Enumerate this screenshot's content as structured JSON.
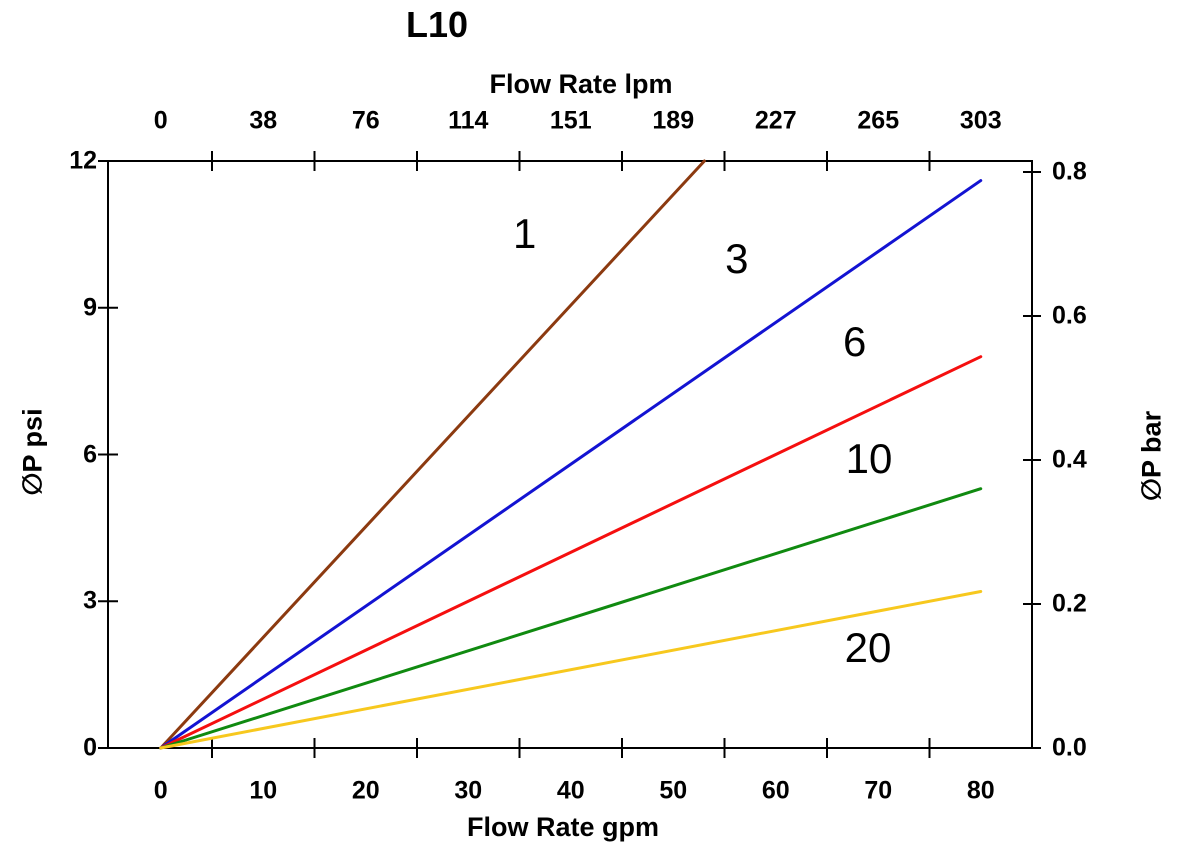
{
  "page_title": "L10",
  "chart_data": {
    "type": "line",
    "title": "L10",
    "grid": false,
    "legend": "none (inline curve labels)",
    "axes": {
      "bottom": {
        "label": "Flow Rate gpm",
        "tick_labels": [
          "0",
          "10",
          "20",
          "30",
          "40",
          "50",
          "60",
          "70",
          "80"
        ],
        "range_gpm": [
          0,
          80
        ]
      },
      "top": {
        "label": "Flow Rate lpm",
        "tick_labels": [
          "0",
          "38",
          "76",
          "114",
          "151",
          "189",
          "227",
          "265",
          "303"
        ],
        "range_lpm": [
          0,
          303
        ]
      },
      "left": {
        "label": "∅P psi",
        "tick_labels": [
          "0",
          "3",
          "6",
          "9",
          "12"
        ],
        "range_psi": [
          0,
          12
        ]
      },
      "right": {
        "label": "∅P bar",
        "tick_labels": [
          "0.0",
          "0.2",
          "0.4",
          "0.6",
          "0.8"
        ],
        "range_bar": [
          0,
          0.8
        ]
      }
    },
    "series": [
      {
        "label": "1",
        "color": "#8C3A10",
        "points": [
          {
            "gpm": 0,
            "psi": 0
          },
          {
            "gpm": 80,
            "psi": 18.1
          }
        ],
        "note": "line exits top of plot at ~53 gpm / 12 psi",
        "label_anchor": {
          "gpm": 35.5,
          "psi": 10.5
        }
      },
      {
        "label": "3",
        "color": "#1313D2",
        "points": [
          {
            "gpm": 0,
            "psi": 0
          },
          {
            "gpm": 80,
            "psi": 11.6
          }
        ],
        "label_anchor": {
          "gpm": 56.2,
          "psi": 10.0
        }
      },
      {
        "label": "6",
        "color": "#F50F0F",
        "points": [
          {
            "gpm": 0,
            "psi": 0
          },
          {
            "gpm": 80,
            "psi": 8.0
          }
        ],
        "label_anchor": {
          "gpm": 67.7,
          "psi": 8.3
        }
      },
      {
        "label": "10",
        "color": "#108A10",
        "points": [
          {
            "gpm": 0,
            "psi": 0
          },
          {
            "gpm": 80,
            "psi": 5.3
          }
        ],
        "label_anchor": {
          "gpm": 69.1,
          "psi": 5.9
        }
      },
      {
        "label": "20",
        "color": "#F7C81E",
        "points": [
          {
            "gpm": 0,
            "psi": 0
          },
          {
            "gpm": 80,
            "psi": 3.2
          }
        ],
        "label_anchor": {
          "gpm": 69.0,
          "psi": 2.05
        }
      }
    ],
    "clip_max_psi": 12,
    "axis_color": "#000000",
    "background_color": "#ffffff"
  }
}
